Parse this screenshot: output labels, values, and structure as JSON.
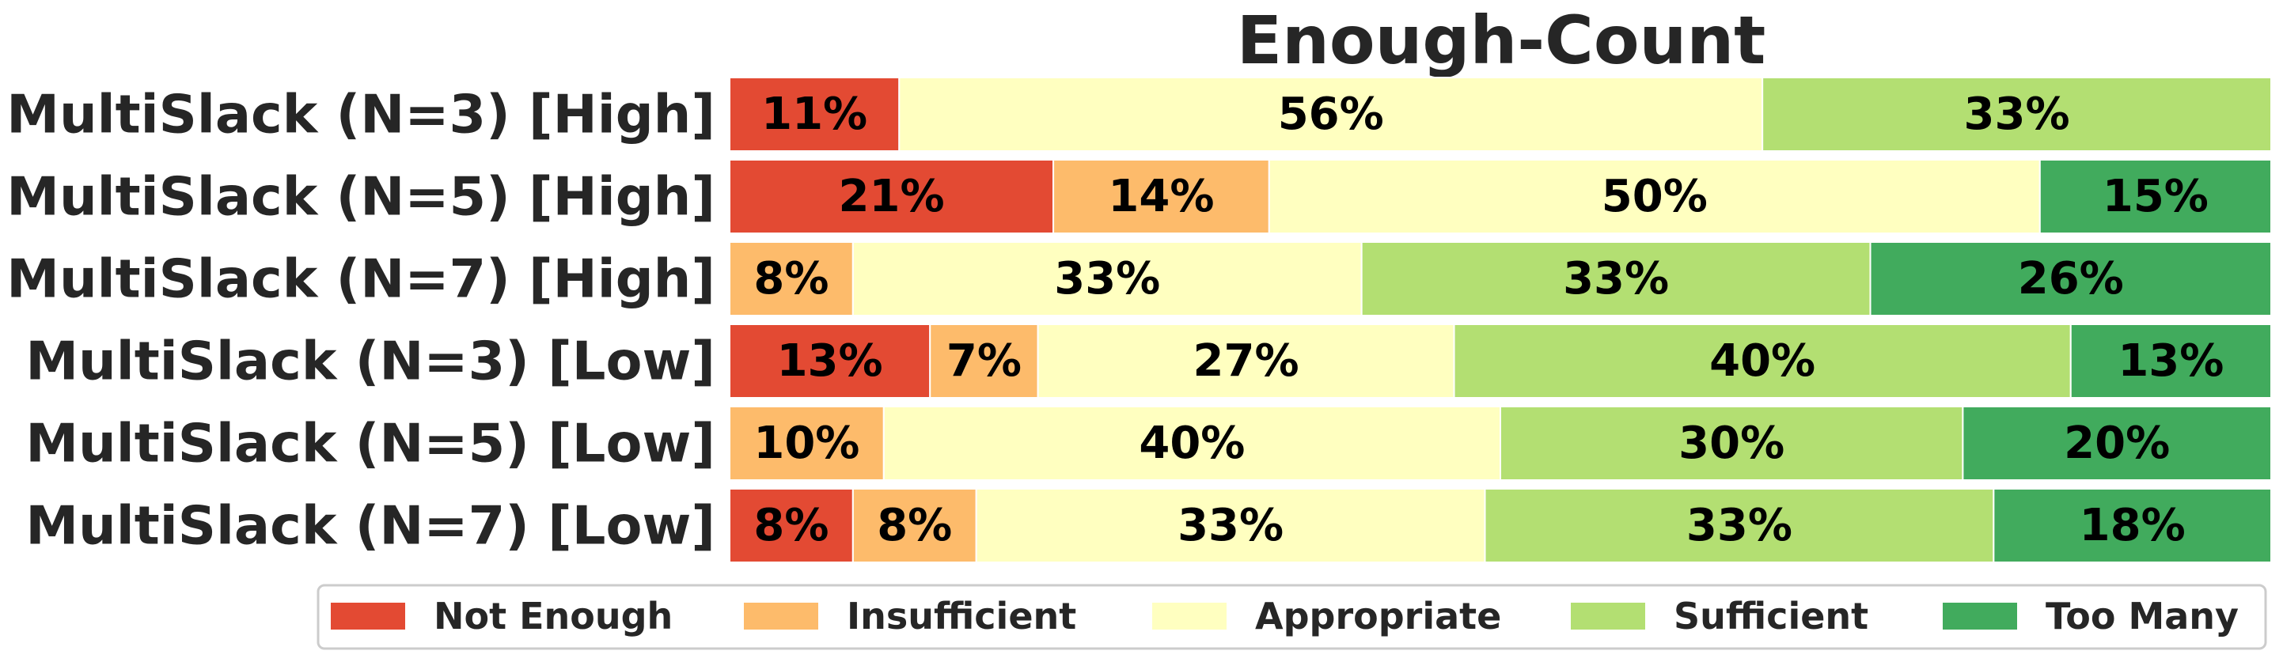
{
  "chart_data": {
    "type": "bar",
    "orientation": "horizontal",
    "stacked": true,
    "normalized": true,
    "title": "Enough-Count",
    "xlabel": "",
    "ylabel": "",
    "xlim": [
      0,
      100
    ],
    "grid": false,
    "legend_position": "bottom",
    "categories": [
      "MultiSlack (N=3) [High]",
      "MultiSlack (N=5) [High]",
      "MultiSlack (N=7) [High]",
      "MultiSlack (N=3) [Low]",
      "MultiSlack (N=5) [Low]",
      "MultiSlack (N=7) [Low]"
    ],
    "series": [
      {
        "name": "Not Enough",
        "color": "#e34a33",
        "values": [
          11,
          21,
          0,
          13,
          0,
          8
        ]
      },
      {
        "name": "Insufficient",
        "color": "#fdbb6b",
        "values": [
          0,
          14,
          8,
          7,
          10,
          8
        ]
      },
      {
        "name": "Appropriate",
        "color": "#ffffc0",
        "values": [
          56,
          50,
          33,
          27,
          40,
          33
        ]
      },
      {
        "name": "Sufficient",
        "color": "#b3df72",
        "values": [
          33,
          0,
          33,
          40,
          30,
          33
        ]
      },
      {
        "name": "Too Many",
        "color": "#41ab5d",
        "values": [
          0,
          15,
          26,
          13,
          20,
          18
        ]
      }
    ],
    "data_labels": [
      [
        "11%",
        "",
        "56%",
        "33%",
        ""
      ],
      [
        "21%",
        "14%",
        "50%",
        "",
        "15%"
      ],
      [
        "",
        "8%",
        "33%",
        "33%",
        "26%"
      ],
      [
        "13%",
        "7%",
        "27%",
        "40%",
        "13%"
      ],
      [
        "",
        "10%",
        "40%",
        "30%",
        "20%"
      ],
      [
        "8%",
        "8%",
        "33%",
        "33%",
        "18%"
      ]
    ]
  }
}
